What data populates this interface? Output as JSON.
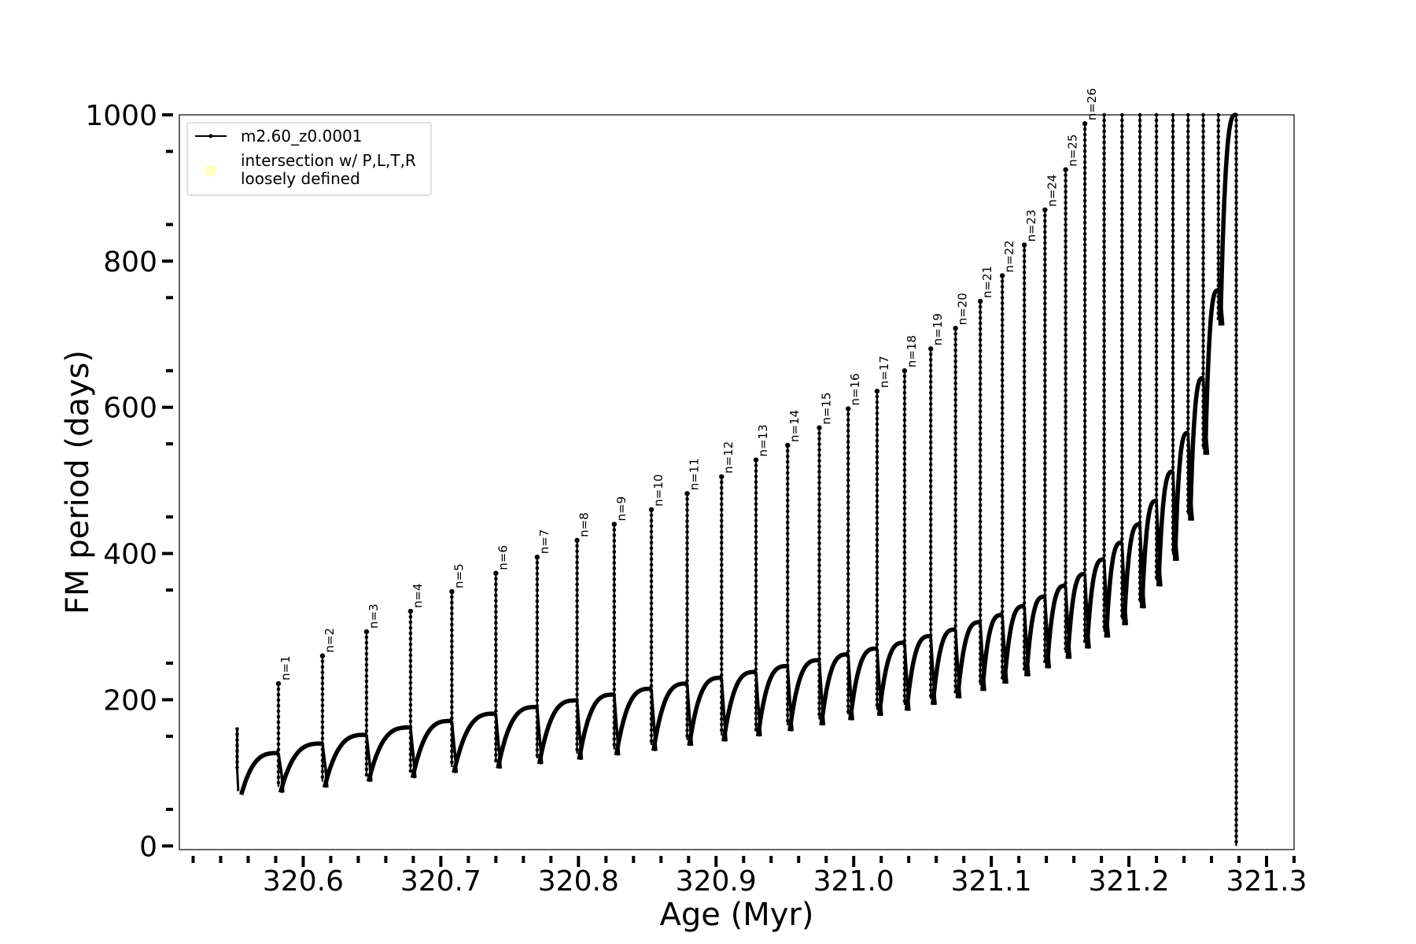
{
  "chart_data": {
    "type": "line",
    "xlabel": "Age (Myr)",
    "ylabel": "FM period (days)",
    "xlim": [
      320.51,
      321.32
    ],
    "ylim": [
      -5,
      1000
    ],
    "xticks": [
      {
        "v": 320.6,
        "label": "320.6"
      },
      {
        "v": 320.7,
        "label": "320.7"
      },
      {
        "v": 320.8,
        "label": "320.8"
      },
      {
        "v": 320.9,
        "label": "320.9"
      },
      {
        "v": 321.0,
        "label": "321.0"
      },
      {
        "v": 321.1,
        "label": "321.1"
      },
      {
        "v": 321.2,
        "label": "321.2"
      },
      {
        "v": 321.3,
        "label": "321.3"
      }
    ],
    "yticks": [
      {
        "v": 0,
        "label": "0"
      },
      {
        "v": 200,
        "label": "200"
      },
      {
        "v": 400,
        "label": "400"
      },
      {
        "v": 600,
        "label": "600"
      },
      {
        "v": 800,
        "label": "800"
      },
      {
        "v": 1000,
        "label": "1000"
      }
    ],
    "x_minor_step": 0.02,
    "y_minor_step": 50,
    "grid": false,
    "legend": {
      "position": "upper-left",
      "entries": [
        {
          "label": "m2.60_z0.0001",
          "marker": "line-dot",
          "color": "#000000"
        },
        {
          "label_lines": [
            "intersection w/ P,L,T,R",
            "loosely defined"
          ],
          "marker": "circle",
          "color": "#ffff99"
        }
      ]
    },
    "series": [
      {
        "name": "m2.60_z0.0001",
        "color": "#000000",
        "start": {
          "x": 320.552,
          "spike": 160,
          "min": 70
        },
        "pulses": [
          {
            "x": 320.582,
            "low": 127,
            "spike": 222,
            "min": 73,
            "label": "n=1"
          },
          {
            "x": 320.614,
            "low": 140,
            "spike": 260,
            "min": 80,
            "label": "n=2"
          },
          {
            "x": 320.646,
            "low": 152,
            "spike": 293,
            "min": 88,
            "label": "n=3"
          },
          {
            "x": 320.678,
            "low": 162,
            "spike": 321,
            "min": 93,
            "label": "n=4"
          },
          {
            "x": 320.708,
            "low": 171,
            "spike": 348,
            "min": 100,
            "label": "n=5"
          },
          {
            "x": 320.74,
            "low": 181,
            "spike": 373,
            "min": 106,
            "label": "n=6"
          },
          {
            "x": 320.77,
            "low": 190,
            "spike": 395,
            "min": 112,
            "label": "n=7"
          },
          {
            "x": 320.799,
            "low": 199,
            "spike": 418,
            "min": 118,
            "label": "n=8"
          },
          {
            "x": 320.826,
            "low": 207,
            "spike": 440,
            "min": 124,
            "label": "n=9"
          },
          {
            "x": 320.853,
            "low": 215,
            "spike": 460,
            "min": 130,
            "label": "n=10"
          },
          {
            "x": 320.879,
            "low": 222,
            "spike": 482,
            "min": 137,
            "label": "n=11"
          },
          {
            "x": 320.904,
            "low": 230,
            "spike": 505,
            "min": 143,
            "label": "n=12"
          },
          {
            "x": 320.929,
            "low": 238,
            "spike": 528,
            "min": 150,
            "label": "n=13"
          },
          {
            "x": 320.952,
            "low": 246,
            "spike": 548,
            "min": 157,
            "label": "n=14"
          },
          {
            "x": 320.975,
            "low": 254,
            "spike": 572,
            "min": 165,
            "label": "n=15"
          },
          {
            "x": 320.996,
            "low": 262,
            "spike": 598,
            "min": 172,
            "label": "n=16"
          },
          {
            "x": 321.017,
            "low": 270,
            "spike": 622,
            "min": 178,
            "label": "n=17"
          },
          {
            "x": 321.037,
            "low": 278,
            "spike": 650,
            "min": 185,
            "label": "n=18"
          },
          {
            "x": 321.056,
            "low": 287,
            "spike": 680,
            "min": 193,
            "label": "n=19"
          },
          {
            "x": 321.074,
            "low": 296,
            "spike": 708,
            "min": 202,
            "label": "n=20"
          },
          {
            "x": 321.092,
            "low": 306,
            "spike": 745,
            "min": 212,
            "label": "n=21"
          },
          {
            "x": 321.108,
            "low": 316,
            "spike": 780,
            "min": 222,
            "label": "n=22"
          },
          {
            "x": 321.124,
            "low": 328,
            "spike": 822,
            "min": 232,
            "label": "n=23"
          },
          {
            "x": 321.139,
            "low": 341,
            "spike": 870,
            "min": 243,
            "label": "n=24"
          },
          {
            "x": 321.154,
            "low": 356,
            "spike": 925,
            "min": 256,
            "label": "n=25"
          },
          {
            "x": 321.168,
            "low": 372,
            "spike": 988,
            "min": 270,
            "label": "n=26"
          },
          {
            "x": 321.182,
            "low": 392,
            "spike": 1000,
            "min": 285,
            "label": ""
          },
          {
            "x": 321.195,
            "low": 415,
            "spike": 1000,
            "min": 302,
            "label": ""
          },
          {
            "x": 321.208,
            "low": 440,
            "spike": 1000,
            "min": 325,
            "label": ""
          },
          {
            "x": 321.22,
            "low": 472,
            "spike": 1000,
            "min": 355,
            "label": ""
          },
          {
            "x": 321.232,
            "low": 512,
            "spike": 1000,
            "min": 390,
            "label": ""
          },
          {
            "x": 321.243,
            "low": 565,
            "spike": 1000,
            "min": 445,
            "label": ""
          },
          {
            "x": 321.254,
            "low": 640,
            "spike": 1000,
            "min": 535,
            "label": ""
          },
          {
            "x": 321.265,
            "low": 760,
            "spike": 1000,
            "min": 712,
            "label": ""
          }
        ],
        "end": {
          "x": 321.278,
          "top": 1000,
          "bottom": 0
        }
      }
    ]
  }
}
